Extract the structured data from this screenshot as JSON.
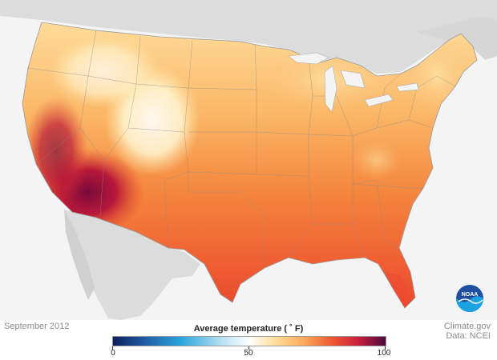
{
  "map": {
    "date": "September 2012",
    "legend": {
      "title": "Average temperature ( ˚ F)",
      "ticks": [
        0,
        50,
        100
      ],
      "colors": [
        "#0d1f5c",
        "#2aa5dc",
        "#ffffff",
        "#fbaa5a",
        "#ef5a32",
        "#4b0a3c"
      ]
    },
    "credits": {
      "source": "Climate.gov",
      "data": "Data: NCEI"
    },
    "logo_text": "NOAA",
    "colors": {
      "land_background": "#dcdcdc",
      "ocean": "#f4f4f4",
      "cool_mountains": "#fff6dc",
      "warm": "#fbaa5a",
      "hot": "#ef5a32",
      "very_hot": "#a8143c"
    }
  }
}
